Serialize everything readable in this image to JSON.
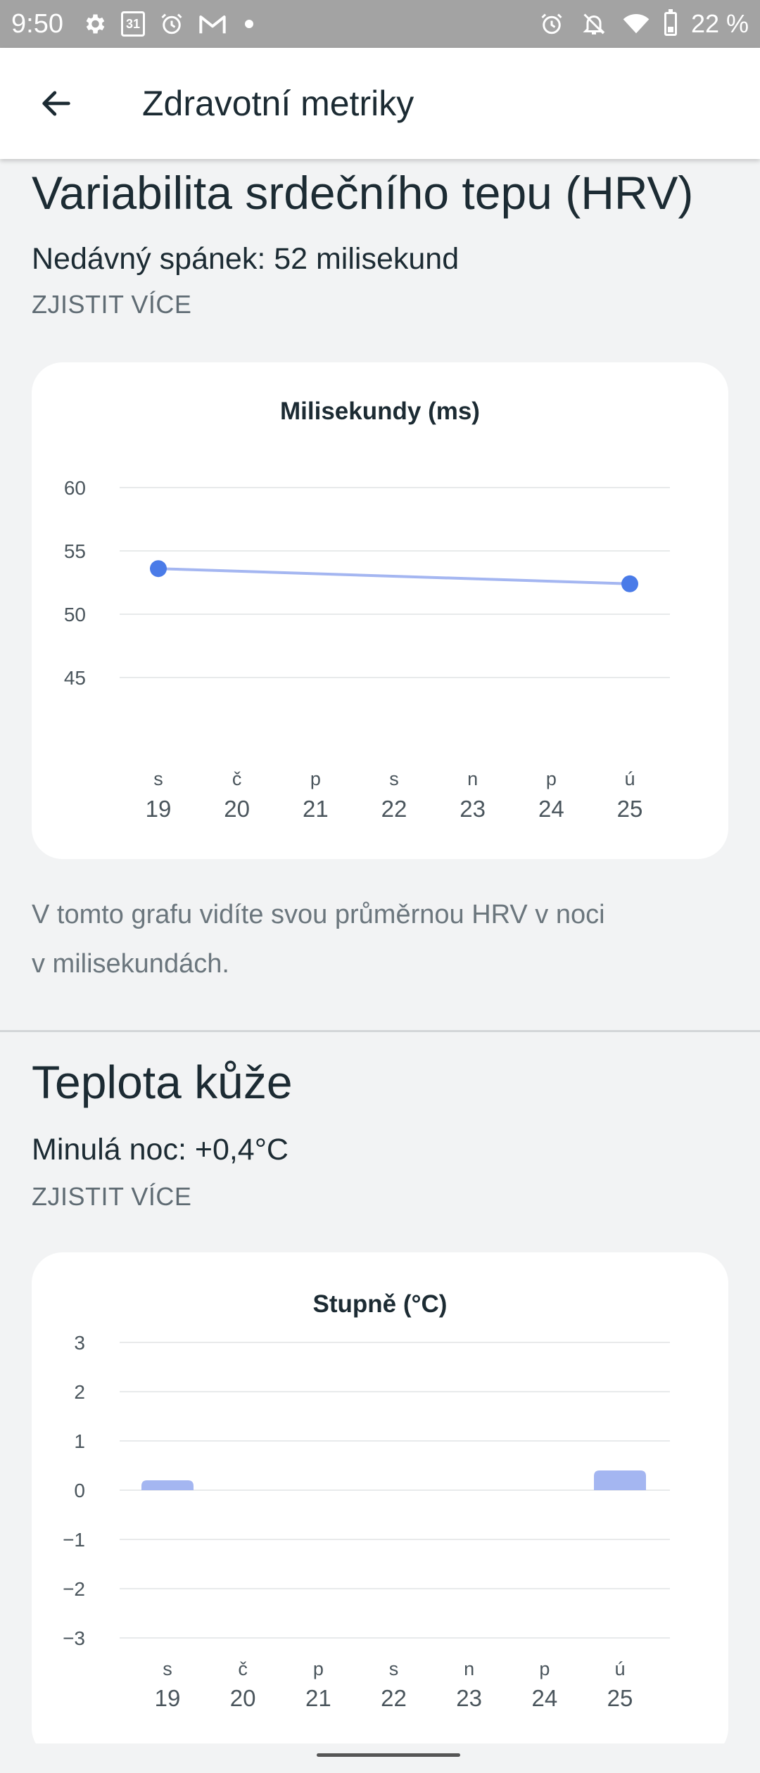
{
  "status_bar": {
    "time": "9:50",
    "battery_text": "22 %",
    "left_icons": [
      "gear-icon",
      "calendar-icon",
      "alarm-icon",
      "gmail-icon",
      "dot-icon"
    ],
    "right_icons": [
      "alarm-icon",
      "notifications-off-icon",
      "wifi-icon",
      "battery-icon"
    ],
    "calendar_day": "31"
  },
  "app_bar": {
    "title": "Zdravotní metriky",
    "back_icon": "arrow-back-icon"
  },
  "hrv": {
    "title": "Variabilita srdečního tepu (HRV)",
    "subtitle": "Nedávný spánek: 52 milisekund",
    "learn_more": "ZJISTIT VÍCE",
    "description_line1": "V tomto grafu vidíte svou průměrnou HRV v noci",
    "description_line2": "v milisekundách."
  },
  "skin_temp": {
    "title": "Teplota kůže",
    "subtitle": "Minulá noc: +0,4°C",
    "learn_more": "ZJISTIT VÍCE"
  },
  "colors": {
    "line_color": "#a4b6f1",
    "point_color": "#4a7be8",
    "bar_color": "#a4b6f1"
  },
  "chart_data": [
    {
      "type": "line",
      "title": "Milisekundy (ms)",
      "xlabel": "",
      "ylabel": "",
      "day_letters": [
        "s",
        "č",
        "p",
        "s",
        "n",
        "p",
        "ú"
      ],
      "categories": [
        "19",
        "20",
        "21",
        "22",
        "23",
        "24",
        "25"
      ],
      "y_ticks": [
        "60",
        "55",
        "50",
        "45"
      ],
      "ylim": [
        45,
        60
      ],
      "grid": true,
      "series": [
        {
          "values": [
            53.6,
            null,
            null,
            null,
            null,
            null,
            52.4
          ]
        }
      ]
    },
    {
      "type": "bar",
      "title": "Stupně (°C)",
      "xlabel": "",
      "ylabel": "",
      "day_letters": [
        "s",
        "č",
        "p",
        "s",
        "n",
        "p",
        "ú"
      ],
      "categories": [
        "19",
        "20",
        "21",
        "22",
        "23",
        "24",
        "25"
      ],
      "y_ticks": [
        "3",
        "2",
        "1",
        "0",
        "−1",
        "−2",
        "−3"
      ],
      "ylim": [
        -3,
        3
      ],
      "grid": true,
      "series": [
        {
          "values": [
            0.2,
            null,
            null,
            null,
            null,
            null,
            0.4
          ]
        }
      ]
    }
  ]
}
